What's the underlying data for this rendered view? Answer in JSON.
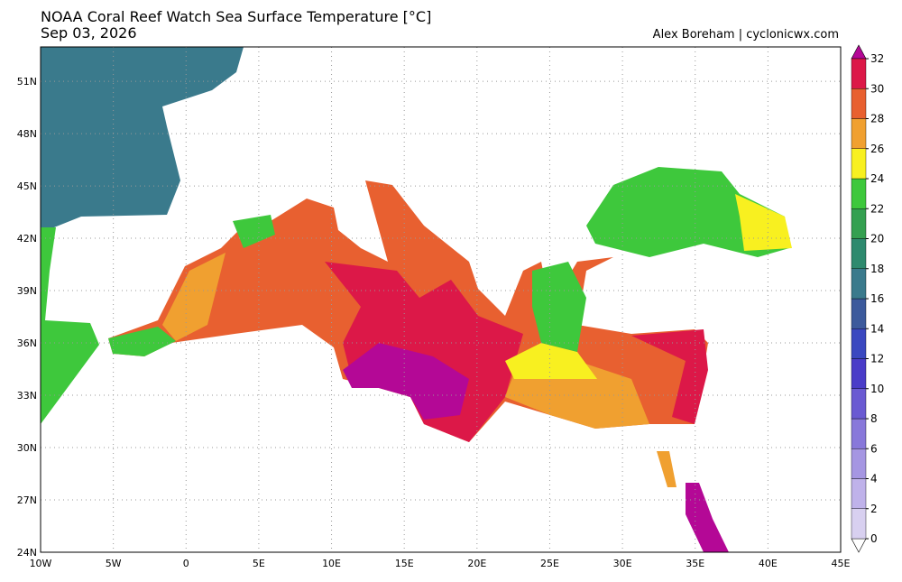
{
  "header": {
    "title": "NOAA Coral Reef Watch Sea Surface Temperature [°C]",
    "date": "Sep 03, 2026",
    "credit": "Alex Boreham | cyclonicwx.com"
  },
  "map": {
    "lat_labels": [
      "51N",
      "48N",
      "45N",
      "42N",
      "39N",
      "36N",
      "33N",
      "30N",
      "27N",
      "24N"
    ],
    "lon_labels": [
      "10W",
      "5W",
      "0",
      "5E",
      "10E",
      "15E",
      "20E",
      "25E",
      "30E",
      "35E",
      "40E",
      "45E"
    ]
  },
  "colorbar": {
    "ticks": [
      0,
      2,
      4,
      6,
      8,
      10,
      12,
      14,
      16,
      18,
      20,
      22,
      24,
      26,
      28,
      30,
      32
    ],
    "colors": [
      "#ffffff",
      "#d8d0f0",
      "#bfb2ea",
      "#a596e2",
      "#8878da",
      "#6a5ad2",
      "#4a3cc8",
      "#3a48c0",
      "#3c5a9c",
      "#3a7a8c",
      "#2e8a6e",
      "#34a050",
      "#3ec83c",
      "#f8f020",
      "#f0a030",
      "#e86030",
      "#dc1848",
      "#b40896"
    ]
  }
}
